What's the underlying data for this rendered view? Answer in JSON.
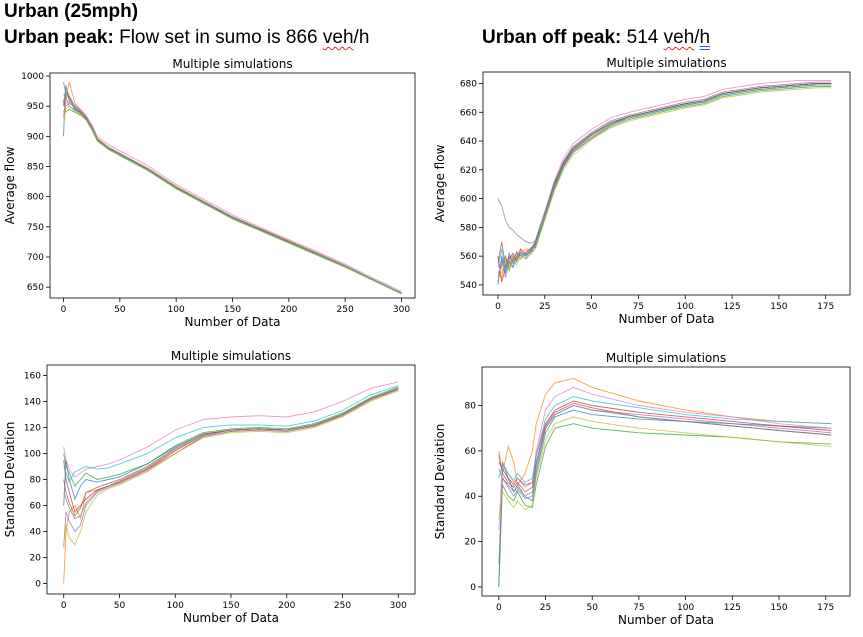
{
  "headings": {
    "main": "Urban (25mph)",
    "peak_bold": "Urban peak:",
    "peak_text_a": " Flow set in sumo is 866 ",
    "peak_unit_a": "veh",
    "peak_unit_b": "/h",
    "offpeak_bold": "Urban off peak:",
    "offpeak_text_a": " 514 ",
    "offpeak_unit_a": "veh",
    "offpeak_unit_b": "/",
    "offpeak_unit_c": "h"
  },
  "palette": [
    "#1f77b4",
    "#ff7f0e",
    "#2ca02c",
    "#d62728",
    "#9467bd",
    "#8c564b",
    "#e377c2",
    "#7f7f7f",
    "#bcbd22",
    "#17becf"
  ],
  "chart_data": [
    {
      "type": "line",
      "title": "Multiple simulations",
      "xlabel": "Number of Data",
      "ylabel": "Average flow",
      "xlim": [
        -12,
        312
      ],
      "ylim": [
        632,
        1005
      ],
      "xticks": [
        0,
        50,
        100,
        150,
        200,
        250,
        300
      ],
      "yticks": [
        650,
        700,
        750,
        800,
        850,
        900,
        950,
        1000
      ],
      "grid": false,
      "x": [
        0,
        2,
        5,
        10,
        15,
        20,
        25,
        30,
        40,
        50,
        75,
        100,
        125,
        150,
        175,
        200,
        225,
        250,
        275,
        300
      ],
      "series": [
        {
          "values": [
            900,
            985,
            960,
            945,
            940,
            930,
            915,
            895,
            880,
            870,
            845,
            815,
            790,
            765,
            745,
            725,
            705,
            685,
            662,
            640
          ]
        },
        {
          "values": [
            930,
            960,
            990,
            955,
            945,
            935,
            918,
            897,
            882,
            872,
            847,
            817,
            792,
            767,
            747,
            727,
            707,
            686,
            663,
            641
          ]
        },
        {
          "values": [
            960,
            940,
            945,
            940,
            935,
            928,
            912,
            893,
            878,
            868,
            843,
            813,
            788,
            763,
            743,
            723,
            703,
            683,
            661,
            639
          ]
        },
        {
          "values": [
            950,
            975,
            965,
            950,
            942,
            932,
            916,
            896,
            881,
            871,
            846,
            816,
            791,
            766,
            746,
            726,
            706,
            685,
            662,
            640
          ]
        },
        {
          "values": [
            940,
            950,
            955,
            948,
            940,
            930,
            914,
            894,
            879,
            869,
            844,
            814,
            789,
            764,
            744,
            724,
            704,
            684,
            661,
            639
          ]
        },
        {
          "values": [
            970,
            965,
            950,
            944,
            938,
            929,
            913,
            894,
            880,
            870,
            845,
            815,
            790,
            765,
            745,
            725,
            705,
            684,
            662,
            640
          ]
        },
        {
          "values": [
            935,
            955,
            958,
            952,
            944,
            934,
            920,
            900,
            886,
            876,
            851,
            820,
            795,
            770,
            749,
            729,
            709,
            688,
            665,
            643
          ]
        },
        {
          "values": [
            990,
            970,
            962,
            946,
            939,
            931,
            915,
            895,
            881,
            871,
            846,
            816,
            791,
            766,
            746,
            726,
            706,
            685,
            662,
            640
          ]
        },
        {
          "values": [
            920,
            945,
            950,
            942,
            936,
            927,
            911,
            892,
            878,
            868,
            843,
            813,
            788,
            763,
            743,
            723,
            703,
            683,
            661,
            639
          ]
        },
        {
          "values": [
            955,
            980,
            968,
            950,
            941,
            931,
            915,
            895,
            880,
            870,
            845,
            815,
            790,
            765,
            745,
            725,
            705,
            685,
            662,
            640
          ]
        }
      ]
    },
    {
      "type": "line",
      "title": "Multiple simulations",
      "xlabel": "Number of Data",
      "ylabel": "Average flow",
      "xlim": [
        -8,
        188
      ],
      "ylim": [
        533,
        688
      ],
      "xticks": [
        0,
        25,
        50,
        75,
        100,
        125,
        150,
        175
      ],
      "yticks": [
        540,
        560,
        580,
        600,
        620,
        640,
        660,
        680
      ],
      "grid": false,
      "x": [
        0,
        2,
        4,
        6,
        8,
        10,
        12,
        15,
        18,
        20,
        25,
        30,
        35,
        40,
        50,
        60,
        70,
        80,
        90,
        100,
        110,
        120,
        130,
        140,
        150,
        160,
        170,
        178
      ],
      "series": [
        {
          "values": [
            540,
            560,
            548,
            562,
            555,
            560,
            563,
            560,
            565,
            570,
            590,
            610,
            625,
            635,
            645,
            652,
            657,
            660,
            663,
            666,
            668,
            673,
            675,
            677,
            678,
            679,
            680,
            680
          ]
        },
        {
          "values": [
            550,
            545,
            558,
            552,
            560,
            556,
            562,
            565,
            563,
            568,
            588,
            608,
            623,
            633,
            643,
            651,
            656,
            659,
            662,
            665,
            667,
            672,
            674,
            676,
            677,
            678,
            679,
            679
          ]
        },
        {
          "values": [
            545,
            555,
            560,
            550,
            558,
            562,
            558,
            562,
            566,
            566,
            586,
            606,
            622,
            632,
            642,
            650,
            655,
            658,
            661,
            664,
            666,
            671,
            673,
            675,
            676,
            677,
            678,
            678
          ]
        },
        {
          "values": [
            560,
            542,
            552,
            558,
            562,
            557,
            565,
            561,
            564,
            569,
            589,
            609,
            624,
            634,
            644,
            652,
            657,
            660,
            663,
            666,
            668,
            673,
            675,
            677,
            678,
            679,
            680,
            680
          ]
        },
        {
          "values": [
            542,
            558,
            545,
            556,
            552,
            559,
            561,
            558,
            563,
            567,
            587,
            607,
            622,
            632,
            642,
            651,
            656,
            659,
            662,
            665,
            667,
            672,
            674,
            676,
            677,
            678,
            679,
            679
          ]
        },
        {
          "values": [
            555,
            570,
            553,
            560,
            556,
            563,
            560,
            563,
            566,
            570,
            590,
            610,
            625,
            635,
            645,
            653,
            657,
            660,
            663,
            666,
            668,
            673,
            675,
            677,
            678,
            679,
            680,
            680
          ]
        },
        {
          "values": [
            548,
            552,
            560,
            554,
            561,
            558,
            564,
            562,
            565,
            568,
            590,
            612,
            628,
            638,
            648,
            656,
            660,
            663,
            666,
            669,
            671,
            676,
            678,
            680,
            681,
            682,
            682,
            682
          ]
        },
        {
          "values": [
            600,
            595,
            585,
            580,
            578,
            575,
            573,
            570,
            569,
            571,
            591,
            611,
            626,
            636,
            646,
            654,
            658,
            661,
            664,
            667,
            669,
            674,
            676,
            678,
            679,
            680,
            681,
            681
          ]
        },
        {
          "values": [
            544,
            549,
            556,
            551,
            557,
            554,
            560,
            559,
            562,
            565,
            585,
            605,
            620,
            630,
            641,
            649,
            654,
            657,
            660,
            663,
            665,
            670,
            672,
            674,
            675,
            676,
            677,
            677
          ]
        },
        {
          "values": [
            552,
            565,
            549,
            557,
            553,
            560,
            562,
            560,
            564,
            568,
            588,
            608,
            623,
            633,
            644,
            652,
            656,
            659,
            662,
            665,
            667,
            672,
            674,
            676,
            677,
            678,
            679,
            679
          ]
        }
      ]
    },
    {
      "type": "line",
      "title": "Multiple simulations",
      "xlabel": "Number of Data",
      "ylabel": "Standard Deviation",
      "xlim": [
        -15,
        315
      ],
      "ylim": [
        -8,
        168
      ],
      "xticks": [
        0,
        50,
        100,
        150,
        200,
        250,
        300
      ],
      "yticks": [
        0,
        20,
        40,
        60,
        80,
        100,
        120,
        140,
        160
      ],
      "grid": false,
      "x": [
        0,
        2,
        5,
        10,
        15,
        20,
        30,
        40,
        50,
        75,
        100,
        125,
        150,
        175,
        200,
        225,
        250,
        275,
        300
      ],
      "series": [
        {
          "values": [
            60,
            95,
            80,
            65,
            75,
            80,
            78,
            80,
            82,
            92,
            105,
            115,
            118,
            119,
            118,
            122,
            130,
            142,
            150
          ]
        },
        {
          "values": [
            0,
            40,
            55,
            60,
            50,
            70,
            72,
            75,
            78,
            88,
            100,
            113,
            117,
            118,
            117,
            121,
            129,
            141,
            149
          ]
        },
        {
          "values": [
            100,
            90,
            85,
            75,
            80,
            85,
            80,
            82,
            84,
            92,
            106,
            116,
            119,
            120,
            119,
            123,
            131,
            143,
            151
          ]
        },
        {
          "values": [
            95,
            80,
            70,
            55,
            60,
            65,
            72,
            75,
            78,
            88,
            102,
            114,
            118,
            119,
            118,
            122,
            130,
            142,
            150
          ]
        },
        {
          "values": [
            28,
            55,
            48,
            40,
            45,
            60,
            70,
            74,
            77,
            87,
            100,
            113,
            117,
            118,
            117,
            121,
            129,
            141,
            149
          ]
        },
        {
          "values": [
            80,
            70,
            62,
            52,
            58,
            70,
            74,
            77,
            80,
            90,
            104,
            115,
            118,
            119,
            118,
            122,
            130,
            142,
            150
          ]
        },
        {
          "values": [
            105,
            95,
            88,
            82,
            85,
            88,
            90,
            92,
            95,
            105,
            118,
            126,
            128,
            129,
            128,
            132,
            140,
            150,
            155
          ]
        },
        {
          "values": [
            70,
            65,
            58,
            50,
            52,
            62,
            71,
            75,
            79,
            89,
            103,
            114,
            118,
            119,
            118,
            122,
            130,
            142,
            150
          ]
        },
        {
          "values": [
            30,
            45,
            35,
            30,
            40,
            55,
            68,
            73,
            76,
            86,
            100,
            112,
            116,
            117,
            116,
            120,
            128,
            140,
            148
          ]
        },
        {
          "values": [
            90,
            85,
            78,
            86,
            88,
            90,
            88,
            89,
            92,
            100,
            112,
            120,
            122,
            122,
            121,
            125,
            133,
            145,
            152
          ]
        }
      ]
    },
    {
      "type": "line",
      "title": "Multiple simulations",
      "xlabel": "Number of Data",
      "ylabel": "Standard Deviation",
      "xlim": [
        -9,
        188
      ],
      "ylim": [
        -4,
        97
      ],
      "xticks": [
        0,
        25,
        50,
        75,
        100,
        125,
        150,
        175
      ],
      "yticks": [
        0,
        20,
        40,
        60,
        80
      ],
      "grid": false,
      "x": [
        0,
        2,
        5,
        8,
        10,
        14,
        18,
        20,
        25,
        30,
        40,
        50,
        75,
        100,
        125,
        150,
        178
      ],
      "series": [
        {
          "values": [
            0,
            55,
            48,
            42,
            45,
            40,
            38,
            50,
            68,
            75,
            78,
            76,
            74,
            73,
            72,
            71,
            70
          ]
        },
        {
          "values": [
            60,
            50,
            62,
            55,
            45,
            50,
            60,
            72,
            85,
            90,
            92,
            88,
            82,
            78,
            75,
            73,
            72
          ]
        },
        {
          "values": [
            0,
            45,
            40,
            38,
            42,
            36,
            35,
            45,
            62,
            70,
            72,
            70,
            68,
            67,
            66,
            64,
            63
          ]
        },
        {
          "values": [
            55,
            52,
            48,
            45,
            48,
            45,
            46,
            58,
            72,
            78,
            82,
            80,
            77,
            75,
            73,
            71,
            69
          ]
        },
        {
          "values": [
            10,
            48,
            44,
            40,
            43,
            39,
            40,
            52,
            70,
            76,
            80,
            78,
            76,
            74,
            72,
            70,
            68
          ]
        },
        {
          "values": [
            58,
            50,
            46,
            44,
            46,
            42,
            44,
            55,
            71,
            77,
            81,
            79,
            75,
            73,
            71,
            69,
            67
          ]
        },
        {
          "values": [
            25,
            55,
            50,
            46,
            48,
            44,
            46,
            60,
            78,
            84,
            88,
            85,
            80,
            77,
            75,
            72,
            70
          ]
        },
        {
          "values": [
            52,
            48,
            45,
            42,
            44,
            40,
            42,
            54,
            70,
            76,
            80,
            78,
            75,
            73,
            71,
            69,
            67
          ]
        },
        {
          "values": [
            30,
            42,
            38,
            35,
            38,
            34,
            36,
            48,
            65,
            72,
            75,
            73,
            70,
            68,
            66,
            64,
            62
          ]
        },
        {
          "values": [
            48,
            54,
            50,
            47,
            50,
            46,
            48,
            58,
            74,
            80,
            84,
            82,
            79,
            76,
            74,
            73,
            72
          ]
        }
      ]
    }
  ]
}
